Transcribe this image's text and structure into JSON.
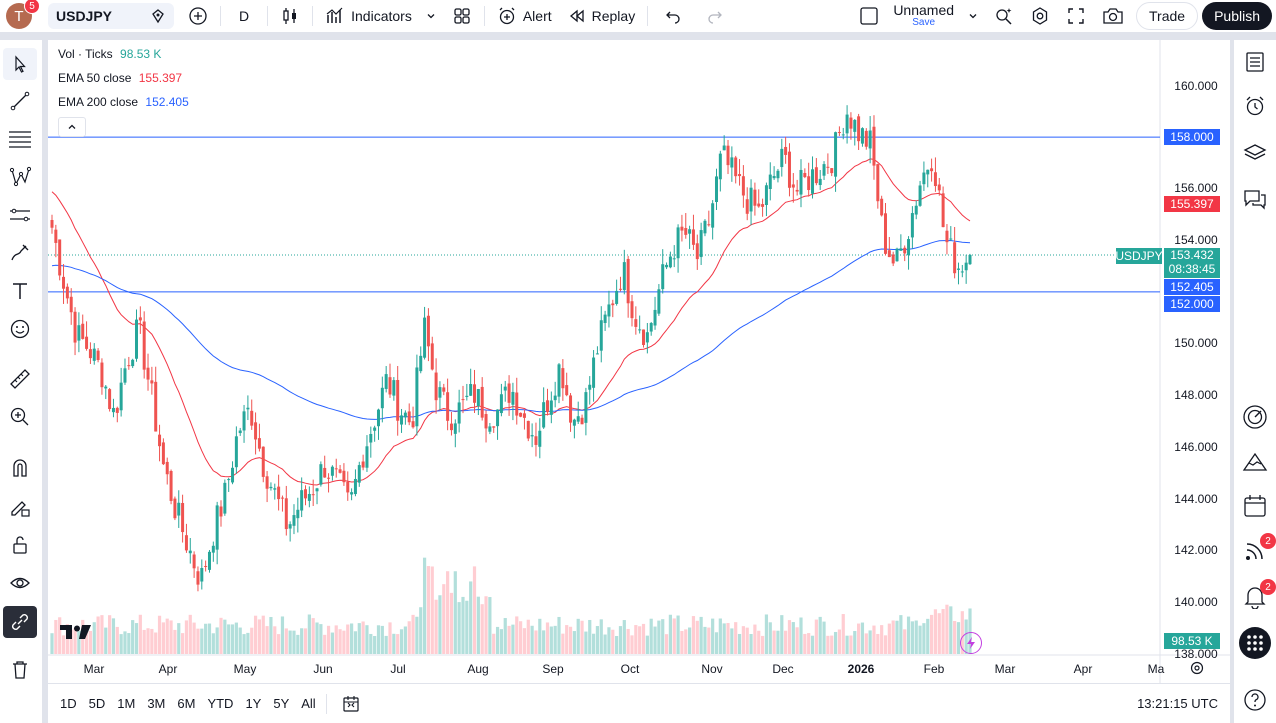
{
  "topbar": {
    "avatar_letter": "T",
    "avatar_badge": "5",
    "symbol": "USDJPY",
    "interval": "D",
    "indicators_label": "Indicators",
    "alert_label": "Alert",
    "replay_label": "Replay",
    "layout_name": "Unnamed",
    "layout_status": "Save",
    "trade_label": "Trade",
    "publish_label": "Publish"
  },
  "legend": {
    "vol_label": "Vol · Ticks",
    "vol_value": "98.53 K",
    "ema50_label": "EMA 50 close",
    "ema50_value": "155.397",
    "ema200_label": "EMA 200 close",
    "ema200_value": "152.405"
  },
  "colors": {
    "up": "#26a69a",
    "down": "#ef5350",
    "ema50": "#f23645",
    "ema200": "#2962ff",
    "hline": "#2962ff",
    "symbol_tag": "#26a69a",
    "vol_up": "#b2dfdb",
    "vol_down": "#ffcdd2"
  },
  "price_scale": [
    "160.000",
    "156.000",
    "154.000",
    "150.000",
    "148.000",
    "146.000",
    "144.000",
    "142.000",
    "140.000",
    "138.000"
  ],
  "price_tags": {
    "hline_top": "158.000",
    "ema50": "155.397",
    "symbol_name": "USDJPY",
    "last_price": "153.432",
    "countdown": "08:38:45",
    "ema200": "152.405",
    "hline_bottom": "152.000",
    "volume": "98.53 K"
  },
  "time_scale": [
    "Mar",
    "Apr",
    "May",
    "Jun",
    "Jul",
    "Aug",
    "Sep",
    "Oct",
    "Nov",
    "Dec",
    "2026",
    "Feb",
    "Mar",
    "Apr",
    "Ma"
  ],
  "bottom_bar": {
    "ranges": [
      "1D",
      "5D",
      "1M",
      "3M",
      "6M",
      "YTD",
      "1Y",
      "5Y",
      "All"
    ],
    "clock": "13:21:15 UTC"
  },
  "right_toolbar": {
    "badge_ideas": "2",
    "badge_alerts": "2"
  },
  "chart_data": {
    "type": "candlestick",
    "symbol": "USDJPY",
    "interval": "1D",
    "months": [
      "Mar",
      "Apr",
      "May",
      "Jun",
      "Jul",
      "Aug",
      "Sep",
      "Oct",
      "Nov",
      "Dec",
      "2026",
      "Feb"
    ],
    "close_path": [
      154.5,
      152.3,
      150.3,
      149.8,
      148.9,
      147.2,
      149.3,
      150.6,
      148.0,
      145.2,
      143.5,
      142.1,
      140.8,
      142.7,
      144.2,
      146.6,
      147.5,
      145.4,
      144.1,
      142.9,
      143.8,
      144.4,
      145.3,
      144.6,
      143.6,
      145.7,
      147.1,
      148.6,
      147.5,
      146.9,
      150.6,
      148.2,
      147.2,
      147.5,
      148.1,
      147.3,
      147.4,
      148.3,
      147.2,
      146.4,
      147.9,
      149.2,
      147.0,
      147.7,
      149.9,
      151.5,
      152.9,
      151.1,
      150.3,
      152.2,
      153.7,
      154.3,
      153.3,
      154.8,
      157.3,
      156.4,
      155.6,
      155.1,
      156.3,
      157.2,
      155.9,
      156.4,
      156.8,
      157.3,
      159.1,
      158.2,
      157.7,
      154.1,
      153.0,
      154.4,
      156.3,
      157.4,
      154.0,
      153.0,
      153.4
    ],
    "ema50": {
      "last": 155.397
    },
    "ema200": {
      "last": 152.405
    },
    "horizontal_lines": [
      158.0,
      152.0
    ],
    "last_price": 153.432,
    "volume_last": "98.53 K",
    "ylim": [
      138,
      161
    ]
  }
}
